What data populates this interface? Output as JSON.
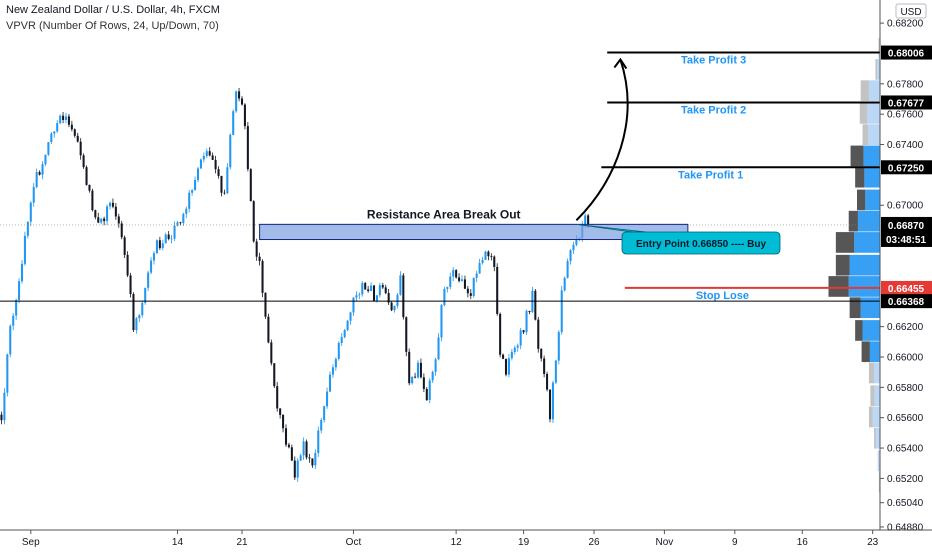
{
  "header": {
    "title": "New Zealand Dollar / U.S. Dollar, 4h, FXCM",
    "indicator": "VPVR (Number Of Rows, 24, Up/Down, 70)"
  },
  "chart_data": {
    "type": "candlestick",
    "currency": "USD",
    "y_axis": {
      "min": 0.6486,
      "max": 0.6826,
      "ticks": [
        "0.68200",
        "0.67800",
        "0.67600",
        "0.67400",
        "0.67000",
        "0.66200",
        "0.66000",
        "0.65800",
        "0.65600",
        "0.65400",
        "0.65200",
        "0.65040",
        "0.64880"
      ]
    },
    "x_axis": {
      "ticks": [
        {
          "label": "Sep",
          "bar": 10
        },
        {
          "label": "14",
          "bar": 60
        },
        {
          "label": "21",
          "bar": 82
        },
        {
          "label": "Oct",
          "bar": 120
        },
        {
          "label": "12",
          "bar": 155
        },
        {
          "label": "19",
          "bar": 178
        },
        {
          "label": "26",
          "bar": 202
        },
        {
          "label": "Nov",
          "bar": 226
        },
        {
          "label": "9",
          "bar": 250
        },
        {
          "label": "16",
          "bar": 273
        },
        {
          "label": "23",
          "bar": 297
        }
      ],
      "bar_count": 300
    },
    "price_path": [
      [
        0,
        0.6562
      ],
      [
        3,
        0.6618
      ],
      [
        6,
        0.6652
      ],
      [
        9,
        0.6688
      ],
      [
        12,
        0.6718
      ],
      [
        15,
        0.6735
      ],
      [
        18,
        0.6752
      ],
      [
        22,
        0.6758
      ],
      [
        25,
        0.6745
      ],
      [
        28,
        0.6725
      ],
      [
        31,
        0.6698
      ],
      [
        34,
        0.669
      ],
      [
        37,
        0.67
      ],
      [
        40,
        0.669
      ],
      [
        43,
        0.6658
      ],
      [
        45,
        0.6618
      ],
      [
        48,
        0.6632
      ],
      [
        51,
        0.6668
      ],
      [
        55,
        0.6678
      ],
      [
        58,
        0.668
      ],
      [
        61,
        0.6688
      ],
      [
        64,
        0.6705
      ],
      [
        67,
        0.6722
      ],
      [
        70,
        0.6735
      ],
      [
        73,
        0.6722
      ],
      [
        76,
        0.6708
      ],
      [
        79,
        0.6765
      ],
      [
        80,
        0.6778
      ],
      [
        82,
        0.677
      ],
      [
        84,
        0.6728
      ],
      [
        86,
        0.6672
      ],
      [
        88,
        0.6662
      ],
      [
        91,
        0.661
      ],
      [
        94,
        0.657
      ],
      [
        97,
        0.6545
      ],
      [
        100,
        0.6524
      ],
      [
        103,
        0.6542
      ],
      [
        106,
        0.653
      ],
      [
        109,
        0.656
      ],
      [
        112,
        0.6585
      ],
      [
        115,
        0.6605
      ],
      [
        118,
        0.6625
      ],
      [
        121,
        0.664
      ],
      [
        124,
        0.6648
      ],
      [
        127,
        0.664
      ],
      [
        130,
        0.665
      ],
      [
        133,
        0.6632
      ],
      [
        136,
        0.665
      ],
      [
        139,
        0.6582
      ],
      [
        142,
        0.6592
      ],
      [
        145,
        0.6572
      ],
      [
        148,
        0.66
      ],
      [
        151,
        0.6645
      ],
      [
        154,
        0.6658
      ],
      [
        157,
        0.6652
      ],
      [
        160,
        0.6642
      ],
      [
        163,
        0.666
      ],
      [
        166,
        0.6668
      ],
      [
        168,
        0.666
      ],
      [
        170,
        0.6602
      ],
      [
        172,
        0.659
      ],
      [
        175,
        0.6608
      ],
      [
        178,
        0.662
      ],
      [
        181,
        0.664
      ],
      [
        183,
        0.6605
      ],
      [
        186,
        0.6575
      ],
      [
        187,
        0.656
      ],
      [
        189,
        0.66
      ],
      [
        191,
        0.664
      ],
      [
        193,
        0.666
      ],
      [
        195,
        0.6672
      ],
      [
        197,
        0.6676
      ],
      [
        199,
        0.669
      ],
      [
        200,
        0.6684
      ]
    ],
    "volume_profile": {
      "bin_size": 0.00143,
      "rows": [
        {
          "low": 0.651,
          "up": 0.006,
          "down": 0.006
        },
        {
          "low": 0.6524,
          "up": 0.02,
          "down": 0.004
        },
        {
          "low": 0.6539,
          "up": 0.045,
          "down": 0.02
        },
        {
          "low": 0.6553,
          "up": 0.08,
          "down": 0.04
        },
        {
          "low": 0.6567,
          "up": 0.06,
          "down": 0.045
        },
        {
          "low": 0.6582,
          "up": 0.065,
          "down": 0.055
        },
        {
          "low": 0.6596,
          "up": 0.11,
          "down": 0.09
        },
        {
          "low": 0.661,
          "up": 0.19,
          "down": 0.08
        },
        {
          "low": 0.6625,
          "up": 0.21,
          "down": 0.12
        },
        {
          "low": 0.6639,
          "up": 0.34,
          "down": 0.22
        },
        {
          "low": 0.6653,
          "up": 0.33,
          "down": 0.15
        },
        {
          "low": 0.6668,
          "up": 0.28,
          "down": 0.2
        },
        {
          "low": 0.6682,
          "up": 0.24,
          "down": 0.1
        },
        {
          "low": 0.6696,
          "up": 0.16,
          "down": 0.09
        },
        {
          "low": 0.6711,
          "up": 0.17,
          "down": 0.1
        },
        {
          "low": 0.6725,
          "up": 0.18,
          "down": 0.14
        },
        {
          "low": 0.6739,
          "up": 0.13,
          "down": 0.06
        },
        {
          "low": 0.6753,
          "up": 0.14,
          "down": 0.08
        },
        {
          "low": 0.6768,
          "up": 0.12,
          "down": 0.09
        },
        {
          "low": 0.6782,
          "up": 0.03,
          "down": 0.02
        },
        {
          "low": 0.6796,
          "up": 0.01,
          "down": 0.006
        }
      ]
    }
  },
  "annotations": {
    "price_levels": [
      {
        "name": "take-profit-3",
        "label": "Take Profit 3",
        "price": 0.68006,
        "price_label": "0.68006",
        "color": "#000000",
        "label_color": "#2196f3",
        "start_bar": 207
      },
      {
        "name": "take-profit-2",
        "label": "Take Profit 2",
        "price": 0.67677,
        "price_label": "0.67677",
        "color": "#000000",
        "label_color": "#2196f3",
        "start_bar": 207
      },
      {
        "name": "take-profit-1",
        "label": "Take Profit 1",
        "price": 0.6725,
        "price_label": "0.67250",
        "color": "#000000",
        "label_color": "#2196f3",
        "start_bar": 205
      },
      {
        "name": "stop-loss",
        "label": "Stop Lose",
        "price": 0.66455,
        "price_label": "0.66455",
        "color": "#e53935",
        "label_color": "#2196f3",
        "start_bar": 213
      },
      {
        "name": "support-level",
        "label": "",
        "price": 0.66368,
        "price_label": "0.66368",
        "color": "#000000",
        "label_color": "#000000",
        "start_bar": 0
      }
    ],
    "current_price": {
      "price": 0.6687,
      "price_label": "0.66870",
      "countdown": "03:48:51"
    },
    "resistance_area": {
      "label": "Resistance Area Break Out",
      "top": 0.66874,
      "bottom": 0.66774,
      "start_bar": 88,
      "end_bar": 234,
      "fill": "#7b9fe0"
    },
    "entry_callout": {
      "label": "Entry Point 0.66850 ---- Buy",
      "fill": "#00bcd4"
    },
    "arrow": {
      "from_bar": 196,
      "from_price": 0.66874,
      "to_bar": 211,
      "to_price": 0.6796
    }
  }
}
